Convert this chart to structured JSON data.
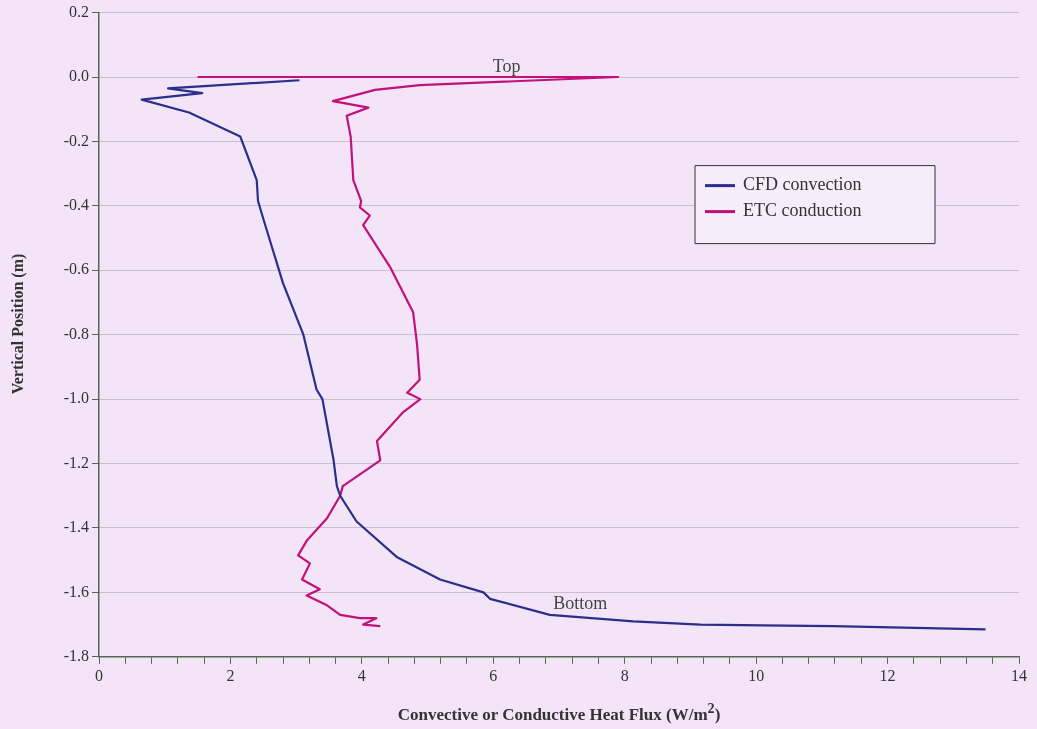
{
  "chart_data": {
    "type": "line",
    "xlabel": "Convective or Conductive Heat Flux (W/m$^{2}$)",
    "ylabel": "Vertical Position (m)",
    "xlim": [
      0,
      14
    ],
    "ylim": [
      -1.8,
      0.2
    ],
    "xticks": [
      0,
      {
        "value": 0.4,
        "label": null
      },
      {
        "value": 0.8,
        "label": null
      },
      {
        "value": 1.2,
        "label": null
      },
      {
        "value": 1.6,
        "label": null
      },
      2,
      {
        "value": 2.4,
        "label": null
      },
      {
        "value": 2.8,
        "label": null
      },
      {
        "value": 3.2,
        "label": null
      },
      {
        "value": 3.6,
        "label": null
      },
      4,
      {
        "value": 4.4,
        "label": null
      },
      {
        "value": 4.8,
        "label": null
      },
      {
        "value": 5.2,
        "label": null
      },
      {
        "value": 5.6,
        "label": null
      },
      6,
      {
        "value": 6.4,
        "label": null
      },
      {
        "value": 6.8,
        "label": null
      },
      {
        "value": 7.2,
        "label": null
      },
      {
        "value": 7.6,
        "label": null
      },
      8,
      {
        "value": 8.4,
        "label": null
      },
      {
        "value": 8.8,
        "label": null
      },
      {
        "value": 9.2,
        "label": null
      },
      {
        "value": 9.6,
        "label": null
      },
      10,
      {
        "value": 10.4,
        "label": null
      },
      {
        "value": 10.8,
        "label": null
      },
      {
        "value": 11.2,
        "label": null
      },
      {
        "value": 11.6,
        "label": null
      },
      12,
      {
        "value": 12.4,
        "label": null
      },
      {
        "value": 12.8,
        "label": null
      },
      {
        "value": 13.2,
        "label": null
      },
      {
        "value": 13.6,
        "label": null
      },
      14
    ],
    "yticks": [
      {
        "value": 0.2,
        "label": "0.2"
      },
      {
        "value": 0,
        "label": "0.0"
      },
      {
        "value": -0.2,
        "label": "-0.2"
      },
      {
        "value": -0.4,
        "label": "-0.4"
      },
      {
        "value": -0.6,
        "label": "-0.6"
      },
      {
        "value": -0.8,
        "label": "-0.8"
      },
      {
        "value": -1,
        "label": "-1.0"
      },
      {
        "value": -1.2,
        "label": "-1.2"
      },
      {
        "value": -1.4,
        "label": "-1.4"
      },
      {
        "value": -1.6,
        "label": "-1.6"
      },
      {
        "value": -1.8,
        "label": "-1.8"
      }
    ],
    "grid": "y",
    "legend": "top right",
    "marker": "none",
    "line_style": "solid",
    "series": [
      {
        "name": "CFD convection",
        "color": "#2b2f8c",
        "x": [
          3.05,
          1.05,
          1.57,
          0.65,
          1.37,
          2.15,
          2.4,
          2.42,
          2.5,
          2.8,
          3.11,
          3.31,
          3.4,
          3.57,
          3.62,
          3.67,
          3.92,
          4.53,
          5.19,
          5.85,
          5.95,
          6.86,
          8.13,
          9.15,
          11.17,
          13.49
        ],
        "values": [
          -0.01,
          -0.035,
          -0.05,
          -0.07,
          -0.11,
          -0.185,
          -0.32,
          -0.385,
          -0.44,
          -0.64,
          -0.8,
          -0.97,
          -1.0,
          -1.19,
          -1.27,
          -1.3,
          -1.38,
          -1.49,
          -1.56,
          -1.6,
          -1.62,
          -1.67,
          -1.69,
          -1.7,
          -1.705,
          -1.715
        ]
      },
      {
        "name": "ETC conduction",
        "color": "#c0127a",
        "x": [
          1.5,
          7.9,
          4.88,
          4.2,
          3.56,
          4.1,
          3.77,
          3.83,
          3.87,
          3.99,
          3.97,
          4.12,
          4.02,
          4.43,
          4.78,
          4.84,
          4.88,
          4.69,
          4.89,
          4.63,
          4.23,
          4.28,
          3.71,
          3.67,
          3.47,
          3.16,
          3.03,
          3.21,
          3.09,
          3.36,
          3.16,
          3.47,
          3.67,
          3.97,
          4.22,
          4.02,
          4.28
        ],
        "values": [
          0.0,
          0.0,
          -0.025,
          -0.04,
          -0.075,
          -0.095,
          -0.12,
          -0.185,
          -0.32,
          -0.385,
          -0.405,
          -0.43,
          -0.46,
          -0.59,
          -0.73,
          -0.83,
          -0.94,
          -0.98,
          -1.0,
          -1.04,
          -1.13,
          -1.19,
          -1.27,
          -1.3,
          -1.37,
          -1.44,
          -1.485,
          -1.51,
          -1.56,
          -1.59,
          -1.61,
          -1.64,
          -1.67,
          -1.68,
          -1.68,
          -1.7,
          -1.705
        ]
      }
    ],
    "annotations": [
      "Top",
      "Bottom"
    ]
  }
}
